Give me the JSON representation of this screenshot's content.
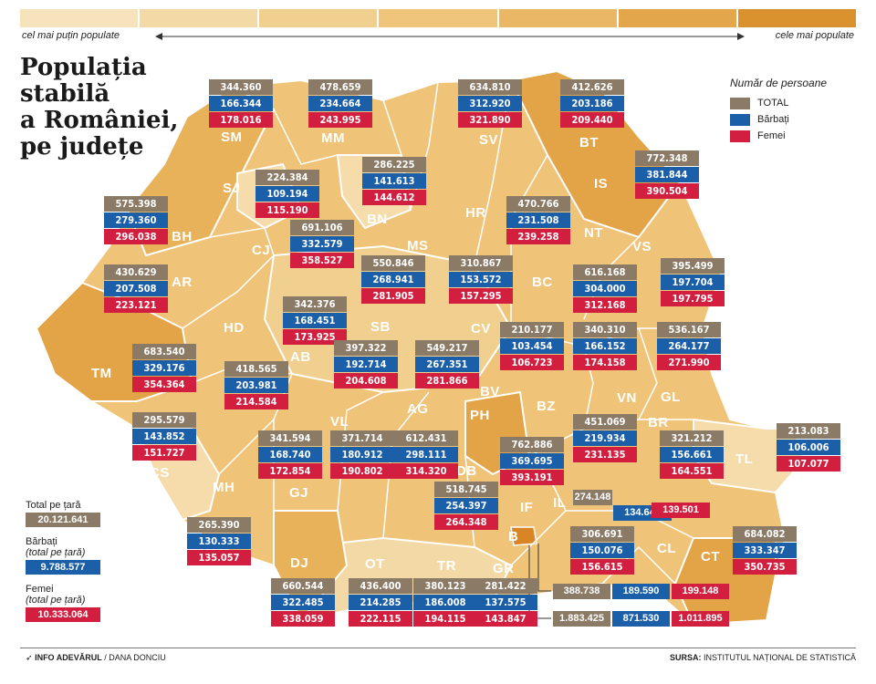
{
  "scale": {
    "left_label": "cel mai puțin populate",
    "right_label": "cele mai populate",
    "colors": [
      "#f6e3bc",
      "#f3d9a6",
      "#f1d08f",
      "#eec57a",
      "#eab765",
      "#e4a64a",
      "#d9922d"
    ]
  },
  "title_lines": [
    "Populația",
    "stabilă",
    "a României,",
    "pe județe"
  ],
  "legend": {
    "title": "Număr de persoane",
    "items": [
      {
        "label": "TOTAL",
        "color": "#8a7a66"
      },
      {
        "label": "Bărbați",
        "color": "#1a5fa8"
      },
      {
        "label": "Femei",
        "color": "#d31f3f"
      }
    ]
  },
  "national": {
    "total_label": "Total pe țară",
    "total_value": "20.121.641",
    "men_label": "Bărbați",
    "men_sub": "(total pe țară)",
    "men_value": "9.788.577",
    "women_label": "Femei",
    "women_sub": "(total pe țară)",
    "women_value": "10.333.064"
  },
  "counties": [
    {
      "code": "SM",
      "total": "344.360",
      "men": "166.344",
      "women": "178.016"
    },
    {
      "code": "MM",
      "total": "478.659",
      "men": "234.664",
      "women": "243.995"
    },
    {
      "code": "SV",
      "total": "634.810",
      "men": "312.920",
      "women": "321.890"
    },
    {
      "code": "BT",
      "total": "412.626",
      "men": "203.186",
      "women": "209.440"
    },
    {
      "code": "SJ",
      "total": "224.384",
      "men": "109.194",
      "women": "115.190"
    },
    {
      "code": "BN",
      "total": "286.225",
      "men": "141.613",
      "women": "144.612"
    },
    {
      "code": "IS",
      "total": "772.348",
      "men": "381.844",
      "women": "390.504"
    },
    {
      "code": "BH",
      "total": "575.398",
      "men": "279.360",
      "women": "296.038"
    },
    {
      "code": "CJ",
      "total": "691.106",
      "men": "332.579",
      "women": "358.527"
    },
    {
      "code": "NT",
      "total": "470.766",
      "men": "231.508",
      "women": "239.258"
    },
    {
      "code": "MS",
      "total": "550.846",
      "men": "268.941",
      "women": "281.905"
    },
    {
      "code": "HR",
      "total": "310.867",
      "men": "153.572",
      "women": "157.295"
    },
    {
      "code": "BC",
      "total": "616.168",
      "men": "304.000",
      "women": "312.168"
    },
    {
      "code": "VS",
      "total": "395.499",
      "men": "197.704",
      "women": "197.795"
    },
    {
      "code": "AR",
      "total": "430.629",
      "men": "207.508",
      "women": "223.121"
    },
    {
      "code": "AB",
      "total": "342.376",
      "men": "168.451",
      "women": "173.925"
    },
    {
      "code": "CV",
      "total": "210.177",
      "men": "103.454",
      "women": "106.723"
    },
    {
      "code": "VN",
      "total": "340.310",
      "men": "166.152",
      "women": "174.158"
    },
    {
      "code": "GL",
      "total": "536.167",
      "men": "264.177",
      "women": "271.990"
    },
    {
      "code": "TM",
      "total": "683.540",
      "men": "329.176",
      "women": "354.364"
    },
    {
      "code": "SB",
      "total": "397.322",
      "men": "192.714",
      "women": "204.608"
    },
    {
      "code": "BV",
      "total": "549.217",
      "men": "267.351",
      "women": "281.866"
    },
    {
      "code": "HD",
      "total": "418.565",
      "men": "203.981",
      "women": "214.584"
    },
    {
      "code": "BR",
      "total": "451.069",
      "men": "219.934",
      "women": "231.135"
    },
    {
      "code": "CS",
      "total": "295.579",
      "men": "143.852",
      "women": "151.727"
    },
    {
      "code": "GJ",
      "total": "341.594",
      "men": "168.740",
      "women": "172.854"
    },
    {
      "code": "VL",
      "total": "371.714",
      "men": "180.912",
      "women": "190.802"
    },
    {
      "code": "AG",
      "total": "612.431",
      "men": "298.111",
      "women": "314.320"
    },
    {
      "code": "PH",
      "total": "762.886",
      "men": "369.695",
      "women": "393.191"
    },
    {
      "code": "BZ",
      "total": "321.212",
      "men": "156.661",
      "women": "164.551"
    },
    {
      "code": "TL",
      "total": "213.083",
      "men": "106.006",
      "women": "107.077"
    },
    {
      "code": "DB",
      "total": "518.745",
      "men": "254.397",
      "women": "264.348"
    },
    {
      "code": "IL",
      "total": "274.148",
      "men": "134.647",
      "women": "139.501"
    },
    {
      "code": "MH",
      "total": "265.390",
      "men": "130.333",
      "women": "135.057"
    },
    {
      "code": "CL",
      "total": "306.691",
      "men": "150.076",
      "women": "156.615"
    },
    {
      "code": "CT",
      "total": "684.082",
      "men": "333.347",
      "women": "350.735"
    },
    {
      "code": "IF",
      "total": "388.738",
      "men": "189.590",
      "women": "199.148"
    },
    {
      "code": "DJ",
      "total": "660.544",
      "men": "322.485",
      "women": "338.059"
    },
    {
      "code": "OT",
      "total": "436.400",
      "men": "214.285",
      "women": "222.115"
    },
    {
      "code": "TR",
      "total": "380.123",
      "men": "186.008",
      "women": "194.115"
    },
    {
      "code": "GR",
      "total": "281.422",
      "men": "137.575",
      "women": "143.847"
    },
    {
      "code": "B",
      "total": "1.883.425",
      "men": "871.530",
      "women": "1.011.895"
    }
  ],
  "colors": {
    "land": "#efc478",
    "land_dark": "#e2a447",
    "land_light": "#f5dcaa",
    "border": "#ffffff",
    "bucharest": "#e08a2a"
  },
  "credit_strong": "INFO ADEVĂRUL",
  "credit_rest": "/ DANA DONCIU",
  "source_strong": "SURSA:",
  "source_rest": " INSTITUTUL NAȚIONAL DE STATISTICĂ"
}
